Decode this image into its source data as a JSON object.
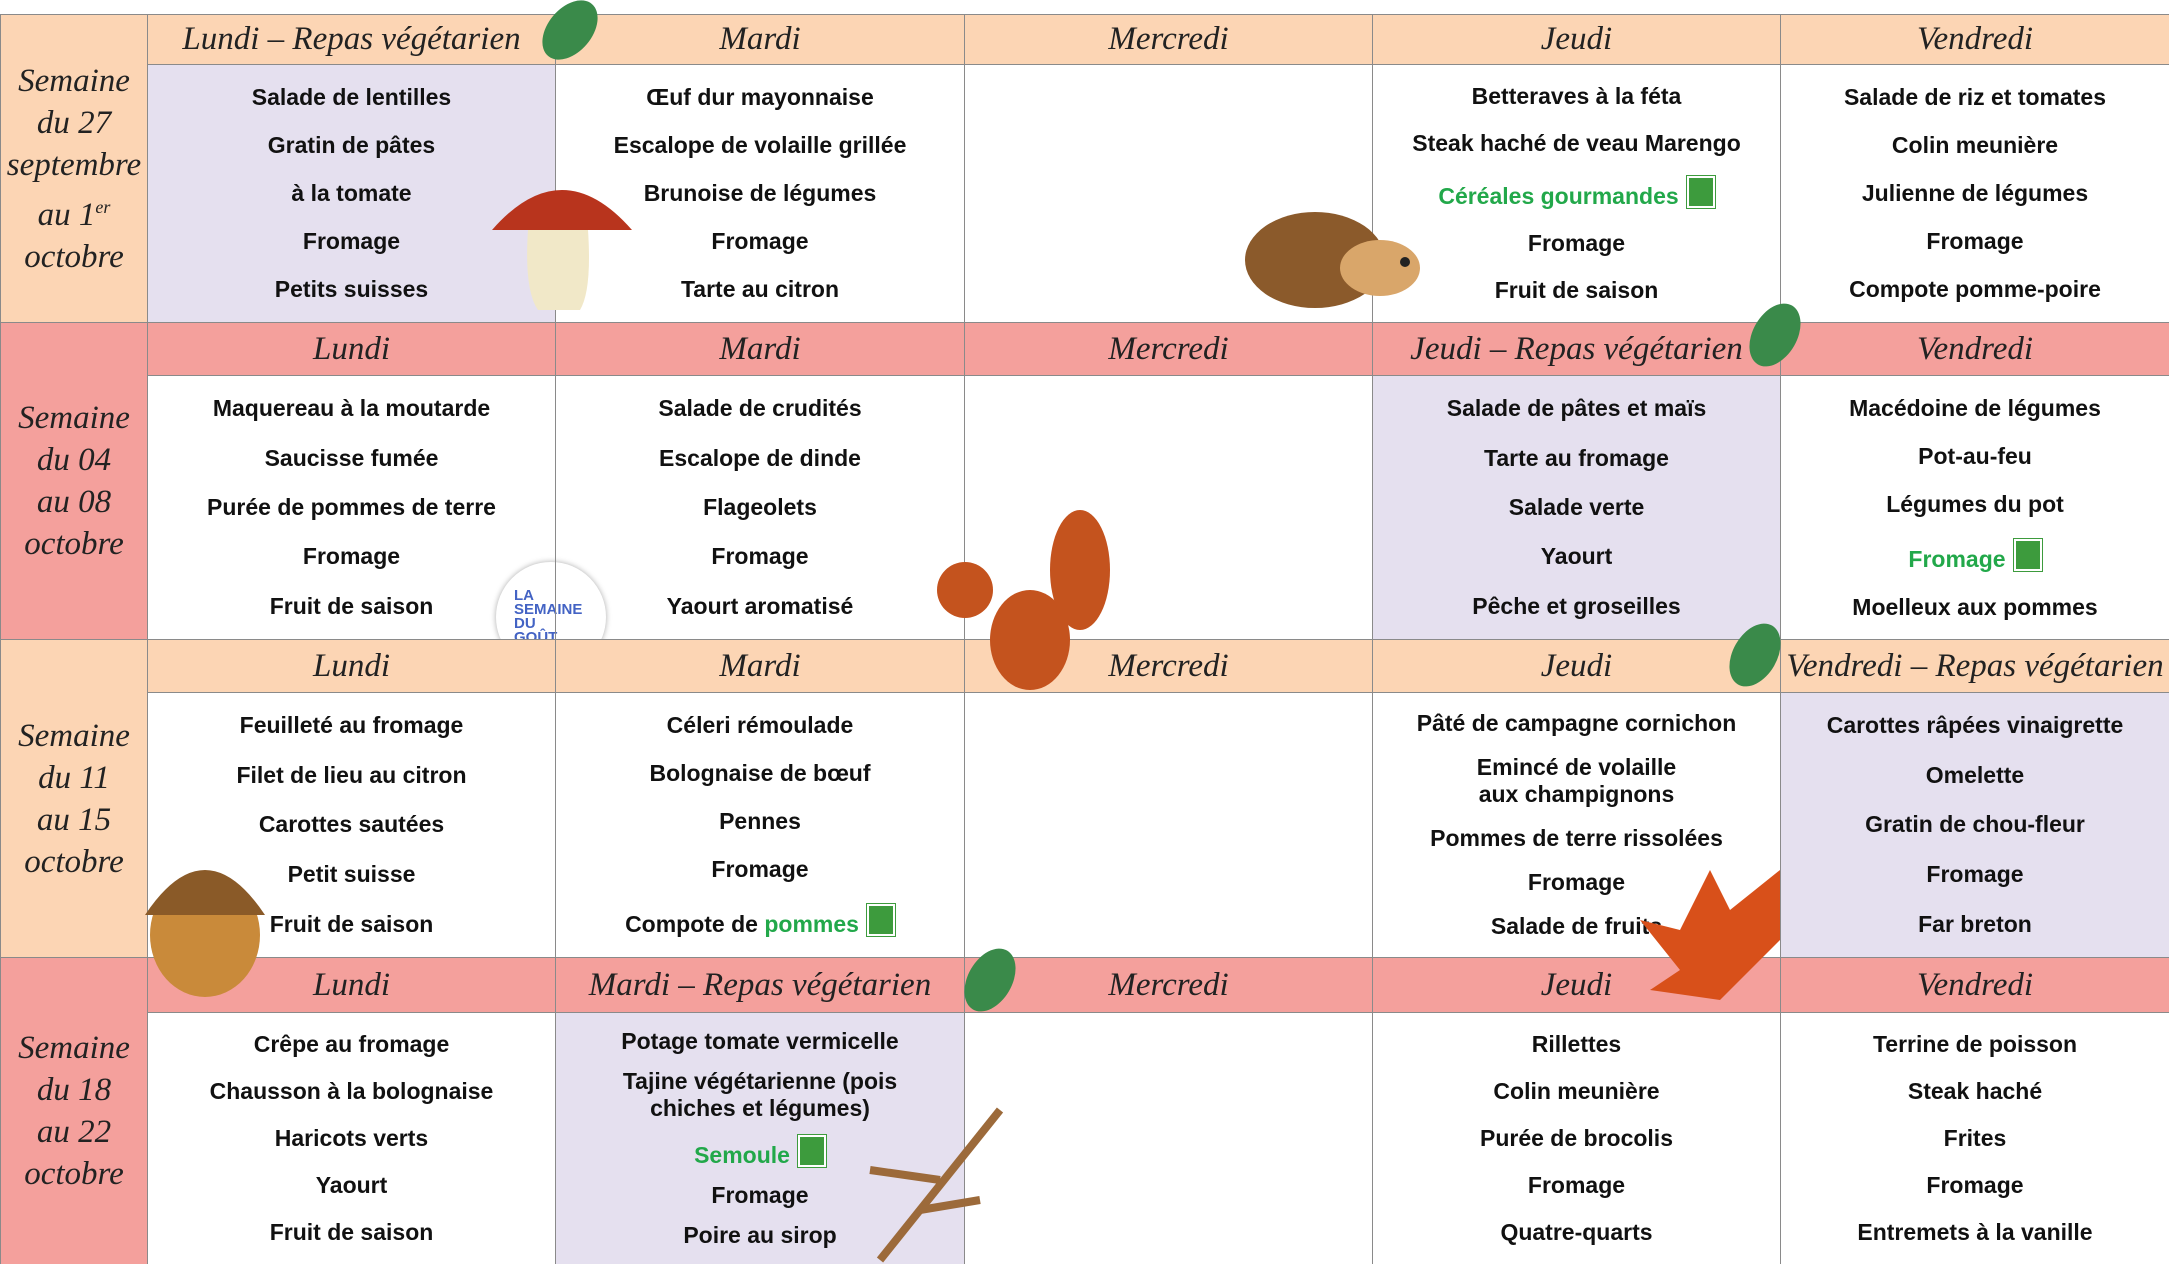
{
  "weeks": [
    {
      "label": [
        {
          "text": "Semaine"
        },
        {
          "text": "du 27"
        },
        {
          "text": "septembre"
        },
        {
          "text": "au 1",
          "sup": "er"
        },
        {
          "text": "octobre"
        }
      ],
      "color": "#fcd5b4",
      "days": [
        {
          "header": "Lundi – Repas végétarien",
          "vegetarian": true,
          "items": [
            "Salade de lentilles",
            "Gratin de pâtes",
            "à la tomate",
            "Fromage",
            "Petits suisses"
          ]
        },
        {
          "header": "Mardi",
          "items": [
            "Œuf dur mayonnaise",
            "Escalope de volaille grillée",
            "Brunoise de légumes",
            "Fromage",
            "Tarte au citron"
          ]
        },
        {
          "header": "Mercredi",
          "items": []
        },
        {
          "header": "Jeudi",
          "items": [
            "Betteraves à la féta",
            "Steak haché de veau Marengo",
            {
              "parts": [
                {
                  "text": "Céréales gourmandes",
                  "green": true
                }
              ],
              "bio": true
            },
            "Fromage",
            "Fruit de saison"
          ]
        },
        {
          "header": "Vendredi",
          "items": [
            "Salade de riz et tomates",
            "Colin meunière",
            "Julienne de légumes",
            "Fromage",
            "Compote pomme-poire"
          ]
        }
      ]
    },
    {
      "label": [
        {
          "text": "Semaine"
        },
        {
          "text": "du 04"
        },
        {
          "text": "au 08"
        },
        {
          "text": "octobre"
        }
      ],
      "color": "#f4a09c",
      "days": [
        {
          "header": "Lundi",
          "items": [
            "Maquereau à la moutarde",
            "Saucisse fumée",
            "Purée de pommes de terre",
            "Fromage",
            "Fruit de saison"
          ]
        },
        {
          "header": "Mardi",
          "items": [
            "Salade de crudités",
            "Escalope de dinde",
            "Flageolets",
            "Fromage",
            "Yaourt aromatisé"
          ]
        },
        {
          "header": "Mercredi",
          "items": []
        },
        {
          "header": "Jeudi – Repas végétarien",
          "vegetarian": true,
          "items": [
            "Salade de pâtes et maïs",
            "Tarte au fromage",
            "Salade verte",
            "Yaourt",
            "Pêche et groseilles"
          ]
        },
        {
          "header": "Vendredi",
          "items": [
            "Macédoine de légumes",
            "Pot-au-feu",
            "Légumes du pot",
            {
              "parts": [
                {
                  "text": "Fromage",
                  "green": true
                }
              ],
              "bio": true
            },
            "Moelleux aux pommes"
          ]
        }
      ]
    },
    {
      "label": [
        {
          "text": "Semaine"
        },
        {
          "text": "du 11"
        },
        {
          "text": "au 15"
        },
        {
          "text": "octobre"
        }
      ],
      "color": "#fcd5b4",
      "days": [
        {
          "header": "Lundi",
          "items": [
            "Feuilleté au fromage",
            "Filet de lieu au citron",
            "Carottes sautées",
            "Petit suisse",
            "Fruit de saison"
          ]
        },
        {
          "header": "Mardi",
          "items": [
            "Céleri rémoulade",
            "Bolognaise de bœuf",
            "Pennes",
            "Fromage",
            {
              "parts": [
                {
                  "text": "Compote de "
                },
                {
                  "text": "pommes",
                  "green": true
                }
              ],
              "bio": true
            }
          ]
        },
        {
          "header": "Mercredi",
          "items": []
        },
        {
          "header": "Jeudi",
          "items": [
            "Pâté de campagne cornichon",
            "Emincé de volaille\naux champignons",
            "Pommes de terre rissolées",
            "Fromage",
            "Salade de fruits"
          ]
        },
        {
          "header": "Vendredi – Repas végétarien",
          "vegetarian": true,
          "items": [
            "Carottes râpées vinaigrette",
            "Omelette",
            "Gratin de chou-fleur",
            "Fromage",
            "Far breton"
          ]
        }
      ]
    },
    {
      "label": [
        {
          "text": "Semaine"
        },
        {
          "text": "du 18"
        },
        {
          "text": "au 22"
        },
        {
          "text": "octobre"
        }
      ],
      "color": "#f4a09c",
      "days": [
        {
          "header": "Lundi",
          "items": [
            "Crêpe au fromage",
            "Chausson à la bolognaise",
            "Haricots verts",
            "Yaourt",
            "Fruit de saison"
          ]
        },
        {
          "header": "Mardi – Repas végétarien",
          "vegetarian": true,
          "items": [
            "Potage tomate vermicelle",
            "Tajine végétarienne (pois\nchiches et légumes)",
            {
              "parts": [
                {
                  "text": "Semoule",
                  "green": true
                }
              ],
              "bio": true
            },
            "Fromage",
            "Poire au sirop"
          ]
        },
        {
          "header": "Mercredi",
          "items": []
        },
        {
          "header": "Jeudi",
          "items": [
            "Rillettes",
            "Colin meunière",
            "Purée de brocolis",
            "Fromage",
            "Quatre-quarts"
          ]
        },
        {
          "header": "Vendredi",
          "items": [
            "Terrine de poisson",
            "Steak haché",
            "Frites",
            "Fromage",
            "Entremets à la vanille"
          ]
        }
      ]
    }
  ],
  "badge": [
    "LA",
    "SEMAINE",
    "DU",
    "GOÛT"
  ]
}
